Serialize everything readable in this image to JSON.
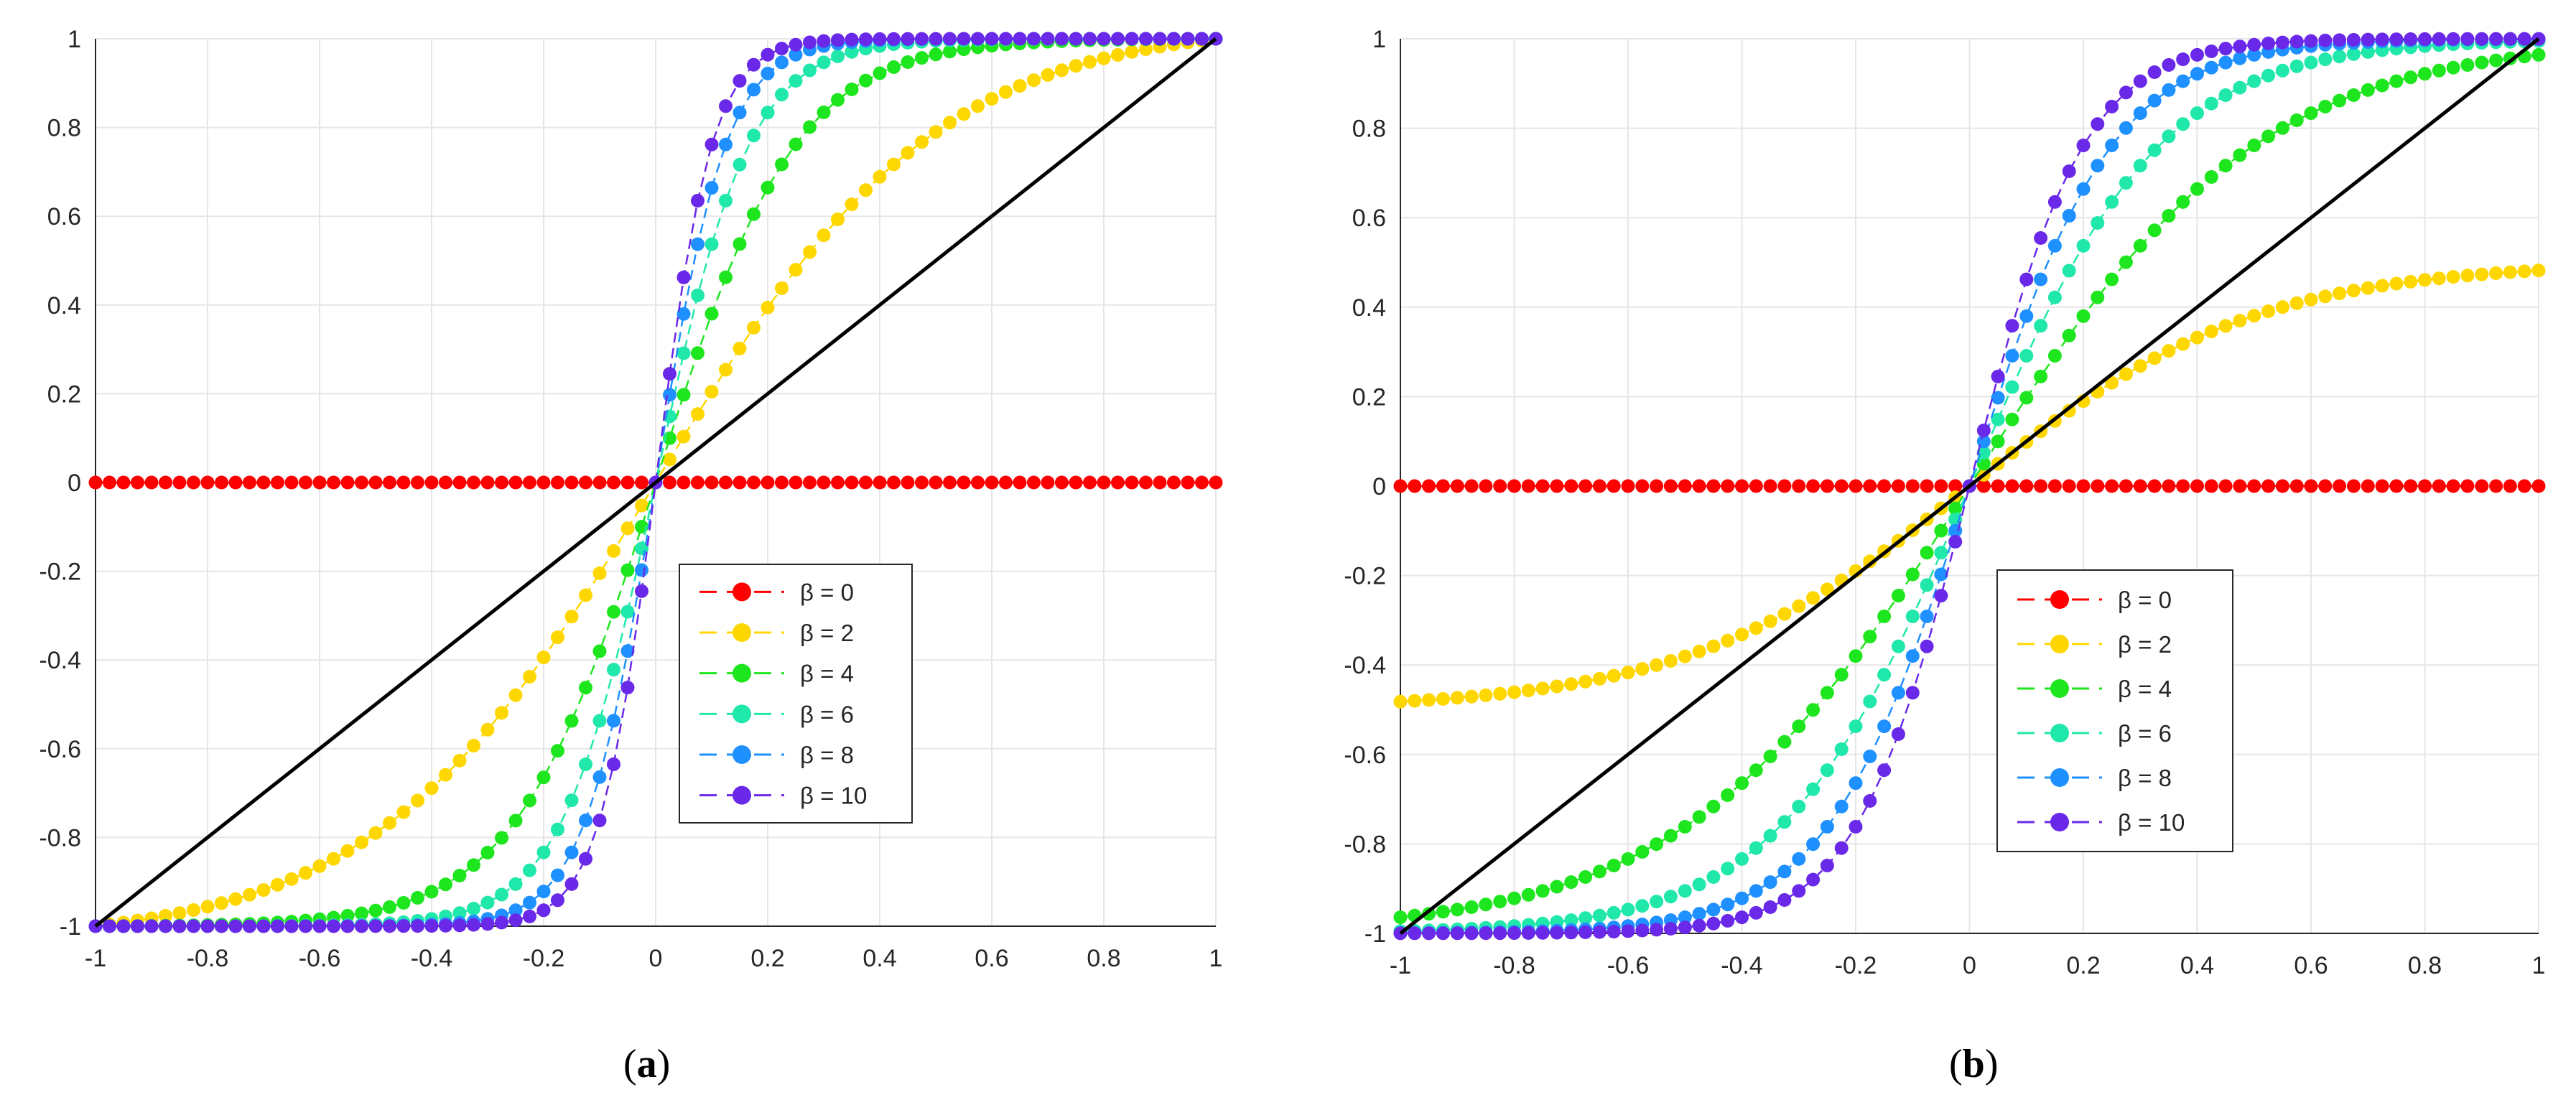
{
  "chart_data": [
    {
      "type": "line",
      "panel_label": "a",
      "x_range": [
        -1,
        1
      ],
      "ylim": [
        -1,
        1
      ],
      "grid": true,
      "x_ticks": [
        "-1",
        "-0.8",
        "-0.6",
        "-0.4",
        "-0.2",
        "0",
        "0.2",
        "0.4",
        "0.6",
        "0.8",
        "1"
      ],
      "y_ticks": [
        "1",
        "0.8",
        "0.6",
        "0.4",
        "0.2",
        "0",
        "-0.2",
        "-0.4",
        "-0.6",
        "-0.8",
        "-1"
      ],
      "legend_position": "lower-right",
      "series": [
        {
          "name": "β = 0",
          "beta": 0,
          "color": "#ff0000",
          "curve": "tanh(beta*x)/tanh(beta)"
        },
        {
          "name": "β = 2",
          "beta": 2,
          "color": "#ffd700",
          "curve": "tanh(beta*x)/tanh(beta)"
        },
        {
          "name": "β = 4",
          "beta": 4,
          "color": "#1ee61e",
          "curve": "tanh(beta*x)/tanh(beta)"
        },
        {
          "name": "β = 6",
          "beta": 6,
          "color": "#20e8aa",
          "curve": "tanh(beta*x)/tanh(beta)"
        },
        {
          "name": "β = 8",
          "beta": 8,
          "color": "#1e90ff",
          "curve": "tanh(beta*x)/tanh(beta)"
        },
        {
          "name": "β = 10",
          "beta": 10,
          "color": "#6a28e8",
          "curve": "tanh(beta*x)/tanh(beta)"
        }
      ],
      "reference_line": {
        "x": [
          -1,
          1
        ],
        "y": [
          -1,
          1
        ],
        "color": "#000000"
      }
    },
    {
      "type": "line",
      "panel_label": "b",
      "x_range": [
        -1,
        1
      ],
      "ylim": [
        -1,
        1
      ],
      "grid": true,
      "x_ticks": [
        "-1",
        "-0.8",
        "-0.6",
        "-0.4",
        "-0.2",
        "0",
        "0.2",
        "0.4",
        "0.6",
        "0.8",
        "1"
      ],
      "y_ticks": [
        "1",
        "0.8",
        "0.6",
        "0.4",
        "0.2",
        "0",
        "-0.2",
        "-0.4",
        "-0.6",
        "-0.8",
        "-1"
      ],
      "legend_position": "lower-right",
      "series": [
        {
          "name": "β = 0",
          "beta": 0,
          "color": "#ff0000",
          "curve": "tanh(beta*x)"
        },
        {
          "name": "β = 2",
          "beta": 2,
          "color": "#ffd700",
          "curve": "tanh(beta*x)/2"
        },
        {
          "name": "β = 4",
          "beta": 4,
          "color": "#1ee61e",
          "curve": "tanh(beta*x/2)"
        },
        {
          "name": "β = 6",
          "beta": 6,
          "color": "#20e8aa",
          "curve": "tanh(beta*x/2)"
        },
        {
          "name": "β = 8",
          "beta": 8,
          "color": "#1e90ff",
          "curve": "tanh(beta*x/2)"
        },
        {
          "name": "β = 10",
          "beta": 10,
          "color": "#6a28e8",
          "curve": "tanh(beta*x/2)"
        }
      ],
      "reference_line": {
        "x": [
          -1,
          1
        ],
        "y": [
          -1,
          1
        ],
        "color": "#000000"
      }
    }
  ]
}
